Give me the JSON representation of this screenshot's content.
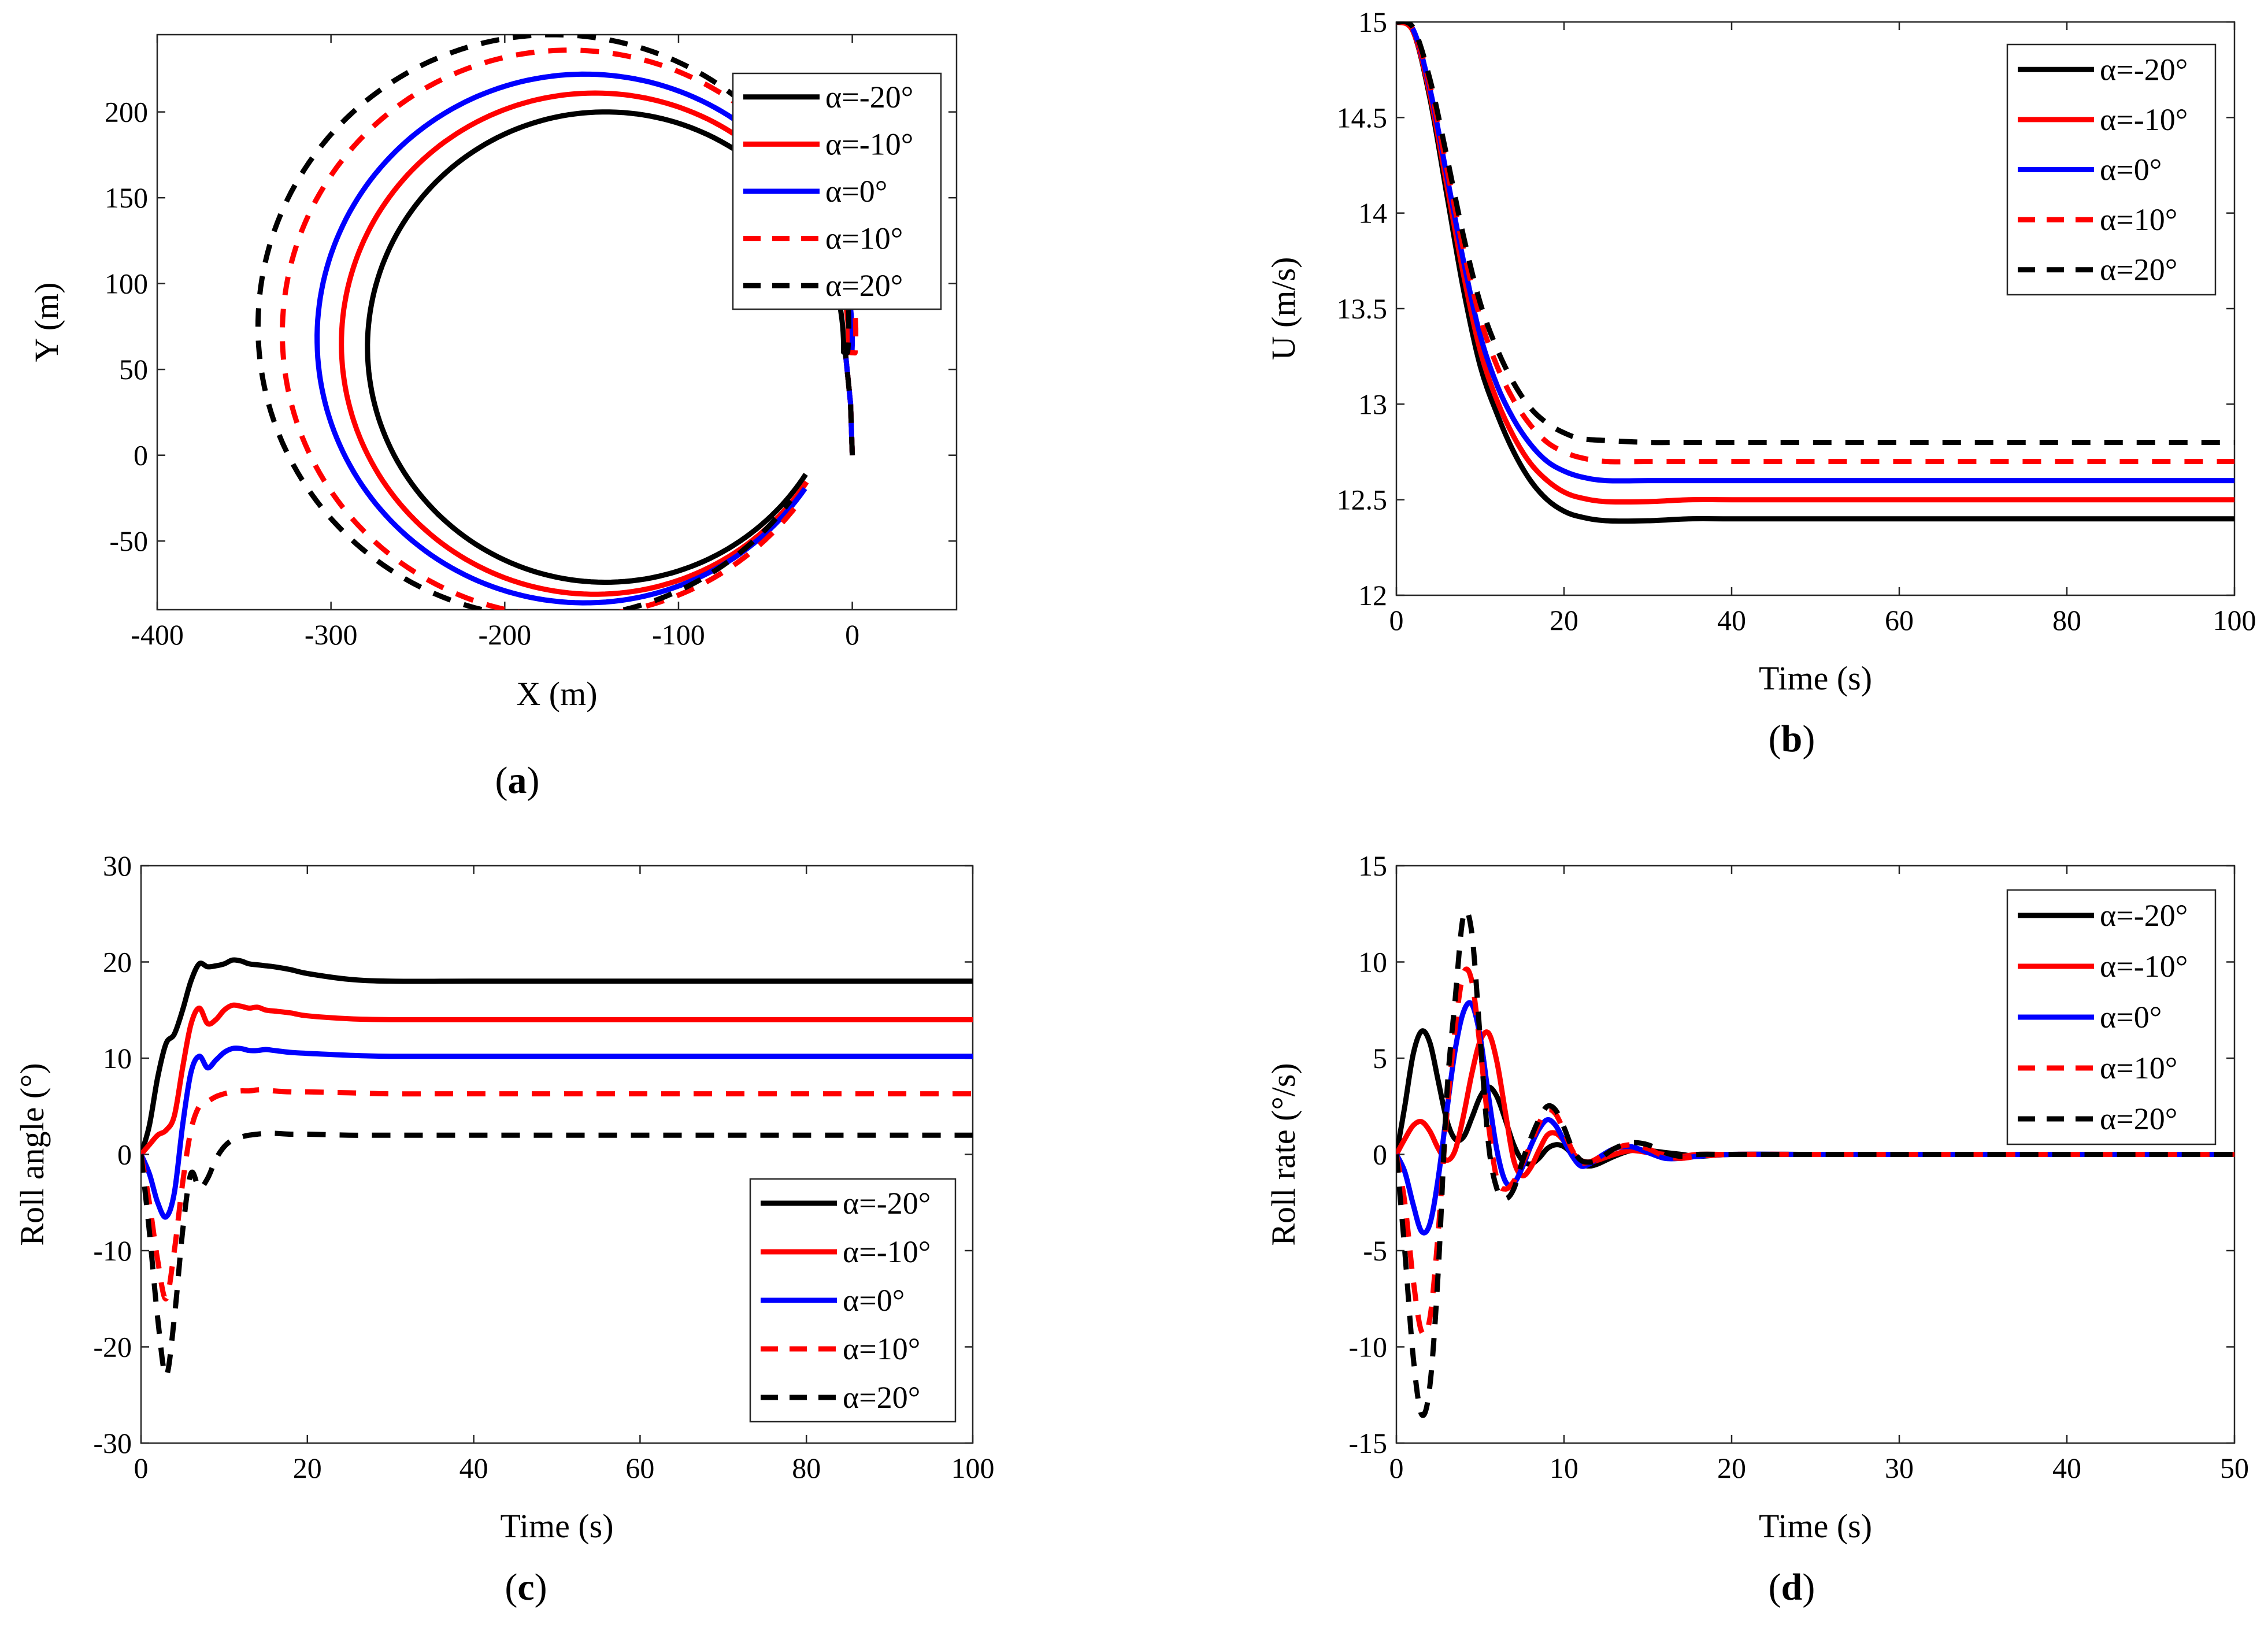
{
  "figure": {
    "series_styles": [
      {
        "name": "α=-20°",
        "color": "#000000",
        "dash": "solid"
      },
      {
        "name": "α=-10°",
        "color": "#ff0000",
        "dash": "solid"
      },
      {
        "name": "α=0°",
        "color": "#0000ff",
        "dash": "solid"
      },
      {
        "name": "α=10°",
        "color": "#ff0000",
        "dash": "dashed"
      },
      {
        "name": "α=20°",
        "color": "#000000",
        "dash": "dashed"
      }
    ]
  },
  "chart_data": [
    {
      "id": "a",
      "type": "line",
      "panel_label": "a",
      "xlabel": "X (m)",
      "ylabel": "Y (m)",
      "xlim": [
        -400,
        60
      ],
      "ylim": [
        -90,
        245
      ],
      "xticks": [
        -400,
        -300,
        -200,
        -100,
        0
      ],
      "yticks": [
        -50,
        0,
        50,
        100,
        150,
        200
      ],
      "legend": "top-right",
      "series": [
        {
          "name": "α=-20°",
          "circle": {
            "cx": -142,
            "cy": 63,
            "r": 137
          }
        },
        {
          "name": "α=-10°",
          "circle": {
            "cx": -148,
            "cy": 65,
            "r": 146
          }
        },
        {
          "name": "α=0°",
          "circle": {
            "cx": -154,
            "cy": 68,
            "r": 154
          }
        },
        {
          "name": "α=10°",
          "circle": {
            "cx": -163,
            "cy": 71,
            "r": 165
          }
        },
        {
          "name": "α=20°",
          "circle": {
            "cx": -172,
            "cy": 75,
            "r": 170
          }
        }
      ]
    },
    {
      "id": "b",
      "type": "line",
      "panel_label": "b",
      "xlabel": "Time (s)",
      "ylabel": "U (m/s)",
      "xlim": [
        0,
        100
      ],
      "ylim": [
        12,
        15
      ],
      "xticks": [
        0,
        20,
        40,
        60,
        80,
        100
      ],
      "yticks": [
        12,
        12.5,
        13,
        13.5,
        14,
        14.5,
        15
      ],
      "legend": "top-right",
      "x": [
        0,
        2,
        4,
        6,
        8,
        10,
        12,
        14,
        16,
        18,
        20,
        22,
        25,
        30,
        35,
        40,
        50,
        60,
        70,
        80,
        90,
        100
      ],
      "series": [
        {
          "name": "α=-20°",
          "values": [
            15.0,
            14.95,
            14.6,
            14.1,
            13.6,
            13.2,
            12.95,
            12.75,
            12.6,
            12.5,
            12.44,
            12.41,
            12.39,
            12.39,
            12.4,
            12.4,
            12.4,
            12.4,
            12.4,
            12.4,
            12.4,
            12.4
          ]
        },
        {
          "name": "α=-10°",
          "values": [
            15.0,
            14.95,
            14.62,
            14.15,
            13.68,
            13.28,
            13.02,
            12.83,
            12.69,
            12.6,
            12.54,
            12.51,
            12.49,
            12.49,
            12.5,
            12.5,
            12.5,
            12.5,
            12.5,
            12.5,
            12.5,
            12.5
          ]
        },
        {
          "name": "α=0°",
          "values": [
            15.0,
            14.96,
            14.65,
            14.2,
            13.75,
            13.36,
            13.1,
            12.92,
            12.79,
            12.7,
            12.65,
            12.62,
            12.6,
            12.6,
            12.6,
            12.6,
            12.6,
            12.6,
            12.6,
            12.6,
            12.6,
            12.6
          ]
        },
        {
          "name": "α=10°",
          "values": [
            15.0,
            14.96,
            14.67,
            14.24,
            13.81,
            13.45,
            13.2,
            13.02,
            12.89,
            12.8,
            12.75,
            12.72,
            12.7,
            12.7,
            12.7,
            12.7,
            12.7,
            12.7,
            12.7,
            12.7,
            12.7,
            12.7
          ]
        },
        {
          "name": "α=20°",
          "values": [
            15.0,
            14.97,
            14.7,
            14.3,
            13.88,
            13.53,
            13.29,
            13.11,
            12.98,
            12.9,
            12.85,
            12.82,
            12.81,
            12.8,
            12.8,
            12.8,
            12.8,
            12.8,
            12.8,
            12.8,
            12.8,
            12.8
          ]
        }
      ]
    },
    {
      "id": "c",
      "type": "line",
      "panel_label": "c",
      "xlabel": "Time (s)",
      "ylabel": "Roll angle (°)",
      "xlim": [
        0,
        100
      ],
      "ylim": [
        -30,
        30
      ],
      "xticks": [
        0,
        20,
        40,
        60,
        80,
        100
      ],
      "yticks": [
        -30,
        -20,
        -10,
        0,
        10,
        20,
        30
      ],
      "legend": "bottom-right",
      "x": [
        0,
        1,
        2,
        3,
        4,
        5,
        6,
        7,
        8,
        9,
        10,
        11,
        12,
        13,
        14,
        15,
        16,
        18,
        20,
        25,
        30,
        40,
        60,
        80,
        100
      ],
      "series": [
        {
          "name": "α=-20°",
          "values": [
            0,
            3,
            8,
            11.5,
            12.5,
            15,
            18,
            19.8,
            19.5,
            19.6,
            19.8,
            20.2,
            20.1,
            19.8,
            19.7,
            19.6,
            19.5,
            19.2,
            18.8,
            18.2,
            18.0,
            18.0,
            18.0,
            18.0,
            18.0
          ]
        },
        {
          "name": "α=-10°",
          "values": [
            0,
            1,
            2,
            2.5,
            4,
            9,
            13.5,
            15.2,
            13.6,
            14.0,
            15.0,
            15.5,
            15.4,
            15.2,
            15.3,
            15.0,
            14.9,
            14.7,
            14.4,
            14.1,
            14.0,
            14.0,
            14.0,
            14.0,
            14.0
          ]
        },
        {
          "name": "α=0°",
          "values": [
            0,
            -2,
            -5,
            -6.5,
            -4,
            3,
            8.5,
            10.2,
            9.0,
            9.8,
            10.6,
            11.0,
            11.0,
            10.8,
            10.8,
            10.9,
            10.8,
            10.6,
            10.5,
            10.3,
            10.2,
            10.2,
            10.2,
            10.2,
            10.2
          ]
        },
        {
          "name": "α=10°",
          "values": [
            0,
            -5,
            -11,
            -15,
            -10,
            -3,
            2.5,
            5,
            5.5,
            6.0,
            6.3,
            6.5,
            6.6,
            6.6,
            6.7,
            6.7,
            6.6,
            6.5,
            6.5,
            6.4,
            6.3,
            6.3,
            6.3,
            6.3,
            6.3
          ]
        },
        {
          "name": "α=20°",
          "values": [
            0,
            -8,
            -17,
            -23,
            -17,
            -8,
            -2,
            -3.5,
            -2.5,
            -0.5,
            0.8,
            1.5,
            1.8,
            2.0,
            2.1,
            2.2,
            2.2,
            2.1,
            2.1,
            2.0,
            2.0,
            2.0,
            2.0,
            2.0,
            2.0
          ]
        }
      ]
    },
    {
      "id": "d",
      "type": "line",
      "panel_label": "d",
      "xlabel": "Time (s)",
      "ylabel": "Roll rate (°/s)",
      "xlim": [
        0,
        50
      ],
      "ylim": [
        -15,
        15
      ],
      "xticks": [
        0,
        10,
        20,
        30,
        40,
        50
      ],
      "yticks": [
        -15,
        -10,
        -5,
        0,
        5,
        10,
        15
      ],
      "legend": "top-right",
      "x": [
        0,
        0.5,
        1,
        1.5,
        2,
        2.5,
        3,
        3.5,
        4,
        4.5,
        5,
        5.5,
        6,
        6.5,
        7,
        7.5,
        8,
        8.5,
        9,
        9.5,
        10,
        10.5,
        11,
        11.5,
        12,
        13,
        14,
        15,
        16,
        17,
        18,
        20,
        25,
        30,
        40,
        50
      ],
      "series": [
        {
          "name": "α=-20°",
          "values": [
            0,
            2.5,
            5.2,
            6.4,
            5.8,
            3.8,
            1.8,
            0.8,
            0.9,
            1.9,
            3.0,
            3.5,
            3.0,
            1.8,
            0.5,
            -0.3,
            -0.5,
            -0.2,
            0.3,
            0.5,
            0.4,
            0.0,
            -0.5,
            -0.6,
            -0.5,
            -0.1,
            0.2,
            0.2,
            0.1,
            0.0,
            -0.1,
            0.0,
            0.0,
            0.0,
            0.0,
            0.0
          ]
        },
        {
          "name": "α=-10°",
          "values": [
            0,
            0.8,
            1.5,
            1.7,
            1.2,
            0.3,
            -0.3,
            0.2,
            2.0,
            4.2,
            5.9,
            6.3,
            4.8,
            2.2,
            -0.3,
            -1.1,
            -0.7,
            0.2,
            1.0,
            1.1,
            0.7,
            0.1,
            -0.3,
            -0.4,
            -0.3,
            0.0,
            0.2,
            0.1,
            0.0,
            -0.1,
            0.0,
            0.0,
            0.0,
            0.0,
            0.0,
            0.0
          ]
        },
        {
          "name": "α=0°",
          "values": [
            0,
            -0.9,
            -2.6,
            -4.0,
            -3.6,
            -1.2,
            2.2,
            5.4,
            7.4,
            7.8,
            6.1,
            3.0,
            0.2,
            -1.4,
            -1.5,
            -0.7,
            0.4,
            1.3,
            1.8,
            1.5,
            0.7,
            -0.1,
            -0.6,
            -0.5,
            -0.2,
            0.3,
            0.4,
            0.1,
            -0.2,
            -0.2,
            -0.1,
            0.0,
            0.0,
            0.0,
            0.0,
            0.0
          ]
        },
        {
          "name": "α=10°",
          "values": [
            0,
            -2.5,
            -6.5,
            -9.2,
            -8.5,
            -4.0,
            2.0,
            6.5,
            9.4,
            9.0,
            5.5,
            1.5,
            -1.3,
            -1.8,
            -1.4,
            -0.5,
            0.5,
            1.6,
            2.3,
            2.1,
            1.2,
            0.2,
            -0.4,
            -0.4,
            -0.2,
            0.3,
            0.5,
            0.3,
            -0.1,
            -0.2,
            -0.1,
            0.0,
            0.0,
            0.0,
            0.0,
            0.0
          ]
        },
        {
          "name": "α=20°",
          "values": [
            0,
            -5,
            -10.5,
            -13.5,
            -12,
            -6,
            3,
            8,
            12.4,
            11.5,
            6,
            0.5,
            -1.8,
            -2.3,
            -1.8,
            -0.4,
            0.8,
            1.8,
            2.5,
            2.3,
            1.4,
            0.3,
            -0.3,
            -0.4,
            -0.3,
            0.3,
            0.6,
            0.5,
            0.1,
            -0.1,
            0.0,
            0.0,
            0.0,
            0.0,
            0.0,
            0.0
          ]
        }
      ]
    }
  ]
}
